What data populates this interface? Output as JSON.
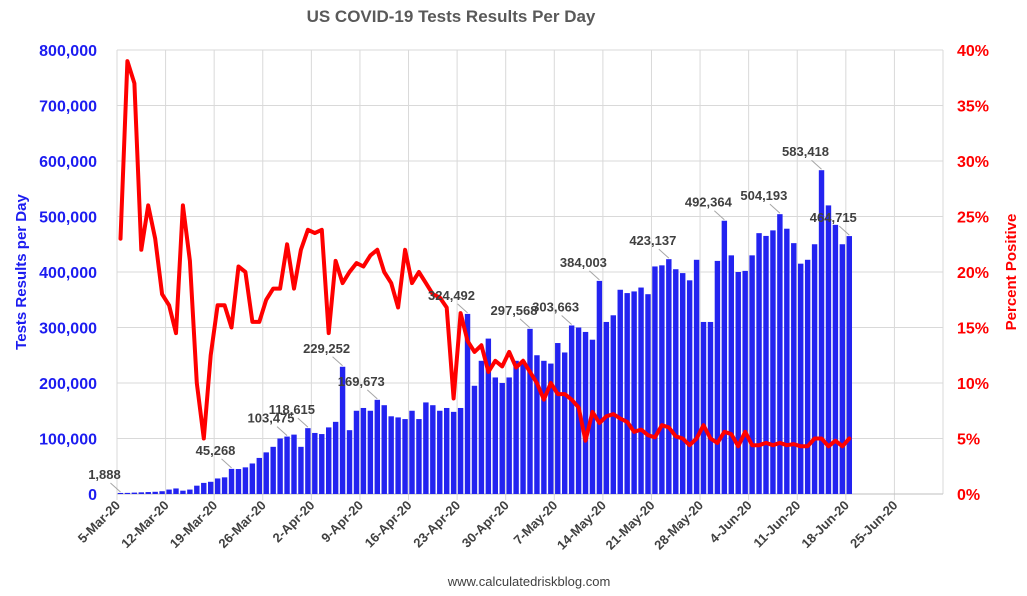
{
  "chart_data": {
    "type": "bar+line",
    "title": "US COVID-19 Tests Results Per Day",
    "ylabel_left": "Tests Results per Day",
    "ylabel_right": "Percent Positive",
    "source": "www.calculatedriskblog.com",
    "x_start": "5-Mar-20",
    "x_tick_labels": [
      "5-Mar-20",
      "12-Mar-20",
      "19-Mar-20",
      "26-Mar-20",
      "2-Apr-20",
      "9-Apr-20",
      "16-Apr-20",
      "23-Apr-20",
      "30-Apr-20",
      "7-May-20",
      "14-May-20",
      "21-May-20",
      "28-May-20",
      "4-Jun-20",
      "11-Jun-20",
      "18-Jun-20",
      "25-Jun-20"
    ],
    "x_day_span": 119,
    "ylim_left": [
      0,
      800000
    ],
    "ylim_right": [
      0,
      40
    ],
    "yticks_left": [
      "0",
      "100,000",
      "200,000",
      "300,000",
      "400,000",
      "500,000",
      "600,000",
      "700,000",
      "800,000"
    ],
    "yticks_right": [
      "0%",
      "5%",
      "10%",
      "15%",
      "20%",
      "25%",
      "30%",
      "35%",
      "40%"
    ],
    "series": [
      {
        "name": "Tests Results per Day",
        "kind": "bar",
        "color": "#2323f0",
        "values": [
          1888,
          2000,
          2500,
          3000,
          3500,
          4000,
          5000,
          8000,
          10000,
          6000,
          8000,
          15000,
          20000,
          22000,
          28000,
          30000,
          45268,
          45000,
          48000,
          55000,
          65000,
          75000,
          85000,
          100000,
          103475,
          107000,
          85000,
          118615,
          110000,
          108000,
          120000,
          130000,
          229252,
          115000,
          150000,
          155000,
          150000,
          169673,
          160000,
          140000,
          138000,
          135000,
          150000,
          135000,
          165000,
          160000,
          150000,
          155000,
          148000,
          155000,
          324492,
          195000,
          240000,
          280000,
          210000,
          200000,
          210000,
          240000,
          240000,
          297568,
          250000,
          240000,
          235000,
          272000,
          255000,
          303663,
          300000,
          292000,
          278000,
          384003,
          310000,
          322000,
          368000,
          362000,
          365000,
          372000,
          360000,
          410000,
          412000,
          423137,
          405000,
          398000,
          385000,
          422000,
          310000,
          310000,
          420000,
          492364,
          430000,
          400000,
          402000,
          430000,
          470000,
          465000,
          475000,
          504193,
          478000,
          452000,
          415000,
          422000,
          450000,
          583418,
          520000,
          485000,
          450000,
          464715
        ],
        "data_labels": [
          {
            "index": 0,
            "text": "1,888"
          },
          {
            "index": 16,
            "text": "45,268"
          },
          {
            "index": 24,
            "text": "103,475"
          },
          {
            "index": 27,
            "text": "118,615"
          },
          {
            "index": 32,
            "text": "229,252"
          },
          {
            "index": 37,
            "text": "169,673"
          },
          {
            "index": 50,
            "text": "324,492"
          },
          {
            "index": 59,
            "text": "297,568"
          },
          {
            "index": 65,
            "text": "303,663"
          },
          {
            "index": 69,
            "text": "384,003"
          },
          {
            "index": 79,
            "text": "423,137"
          },
          {
            "index": 87,
            "text": "492,364"
          },
          {
            "index": 95,
            "text": "504,193"
          },
          {
            "index": 101,
            "text": "583,418"
          },
          {
            "index": 105,
            "text": "464,715"
          }
        ]
      },
      {
        "name": "Percent Positive",
        "kind": "line",
        "color": "#ff0000",
        "values": [
          23.0,
          39.0,
          37.0,
          22.0,
          26.0,
          23.0,
          18.0,
          17.0,
          14.5,
          26.0,
          21.0,
          10.0,
          5.0,
          12.5,
          17.0,
          17.0,
          15.0,
          20.5,
          20.0,
          15.5,
          15.5,
          17.5,
          18.5,
          18.5,
          22.5,
          18.5,
          22.0,
          23.8,
          23.5,
          23.8,
          14.5,
          21.0,
          19.0,
          20.0,
          20.8,
          20.5,
          21.5,
          22.0,
          20.0,
          19.0,
          16.8,
          22.0,
          19.0,
          20.0,
          19.0,
          18.0,
          17.7,
          16.8,
          8.6,
          16.3,
          13.8,
          12.8,
          13.4,
          11.0,
          12.0,
          11.5,
          12.8,
          11.4,
          12.0,
          11.0,
          10.0,
          8.5,
          10.0,
          9.0,
          9.0,
          8.5,
          7.8,
          4.8,
          7.4,
          6.4,
          7.0,
          7.2,
          6.8,
          6.5,
          5.6,
          5.8,
          5.3,
          5.1,
          6.2,
          6.0,
          5.2,
          5.0,
          4.4,
          5.0,
          6.2,
          5.0,
          4.6,
          5.6,
          5.4,
          4.3,
          5.6,
          4.4,
          4.4,
          4.6,
          4.4,
          4.6,
          4.4,
          4.5,
          4.3,
          4.3,
          5.0,
          5.0,
          4.3,
          4.8,
          4.3,
          5.0
        ]
      }
    ]
  }
}
